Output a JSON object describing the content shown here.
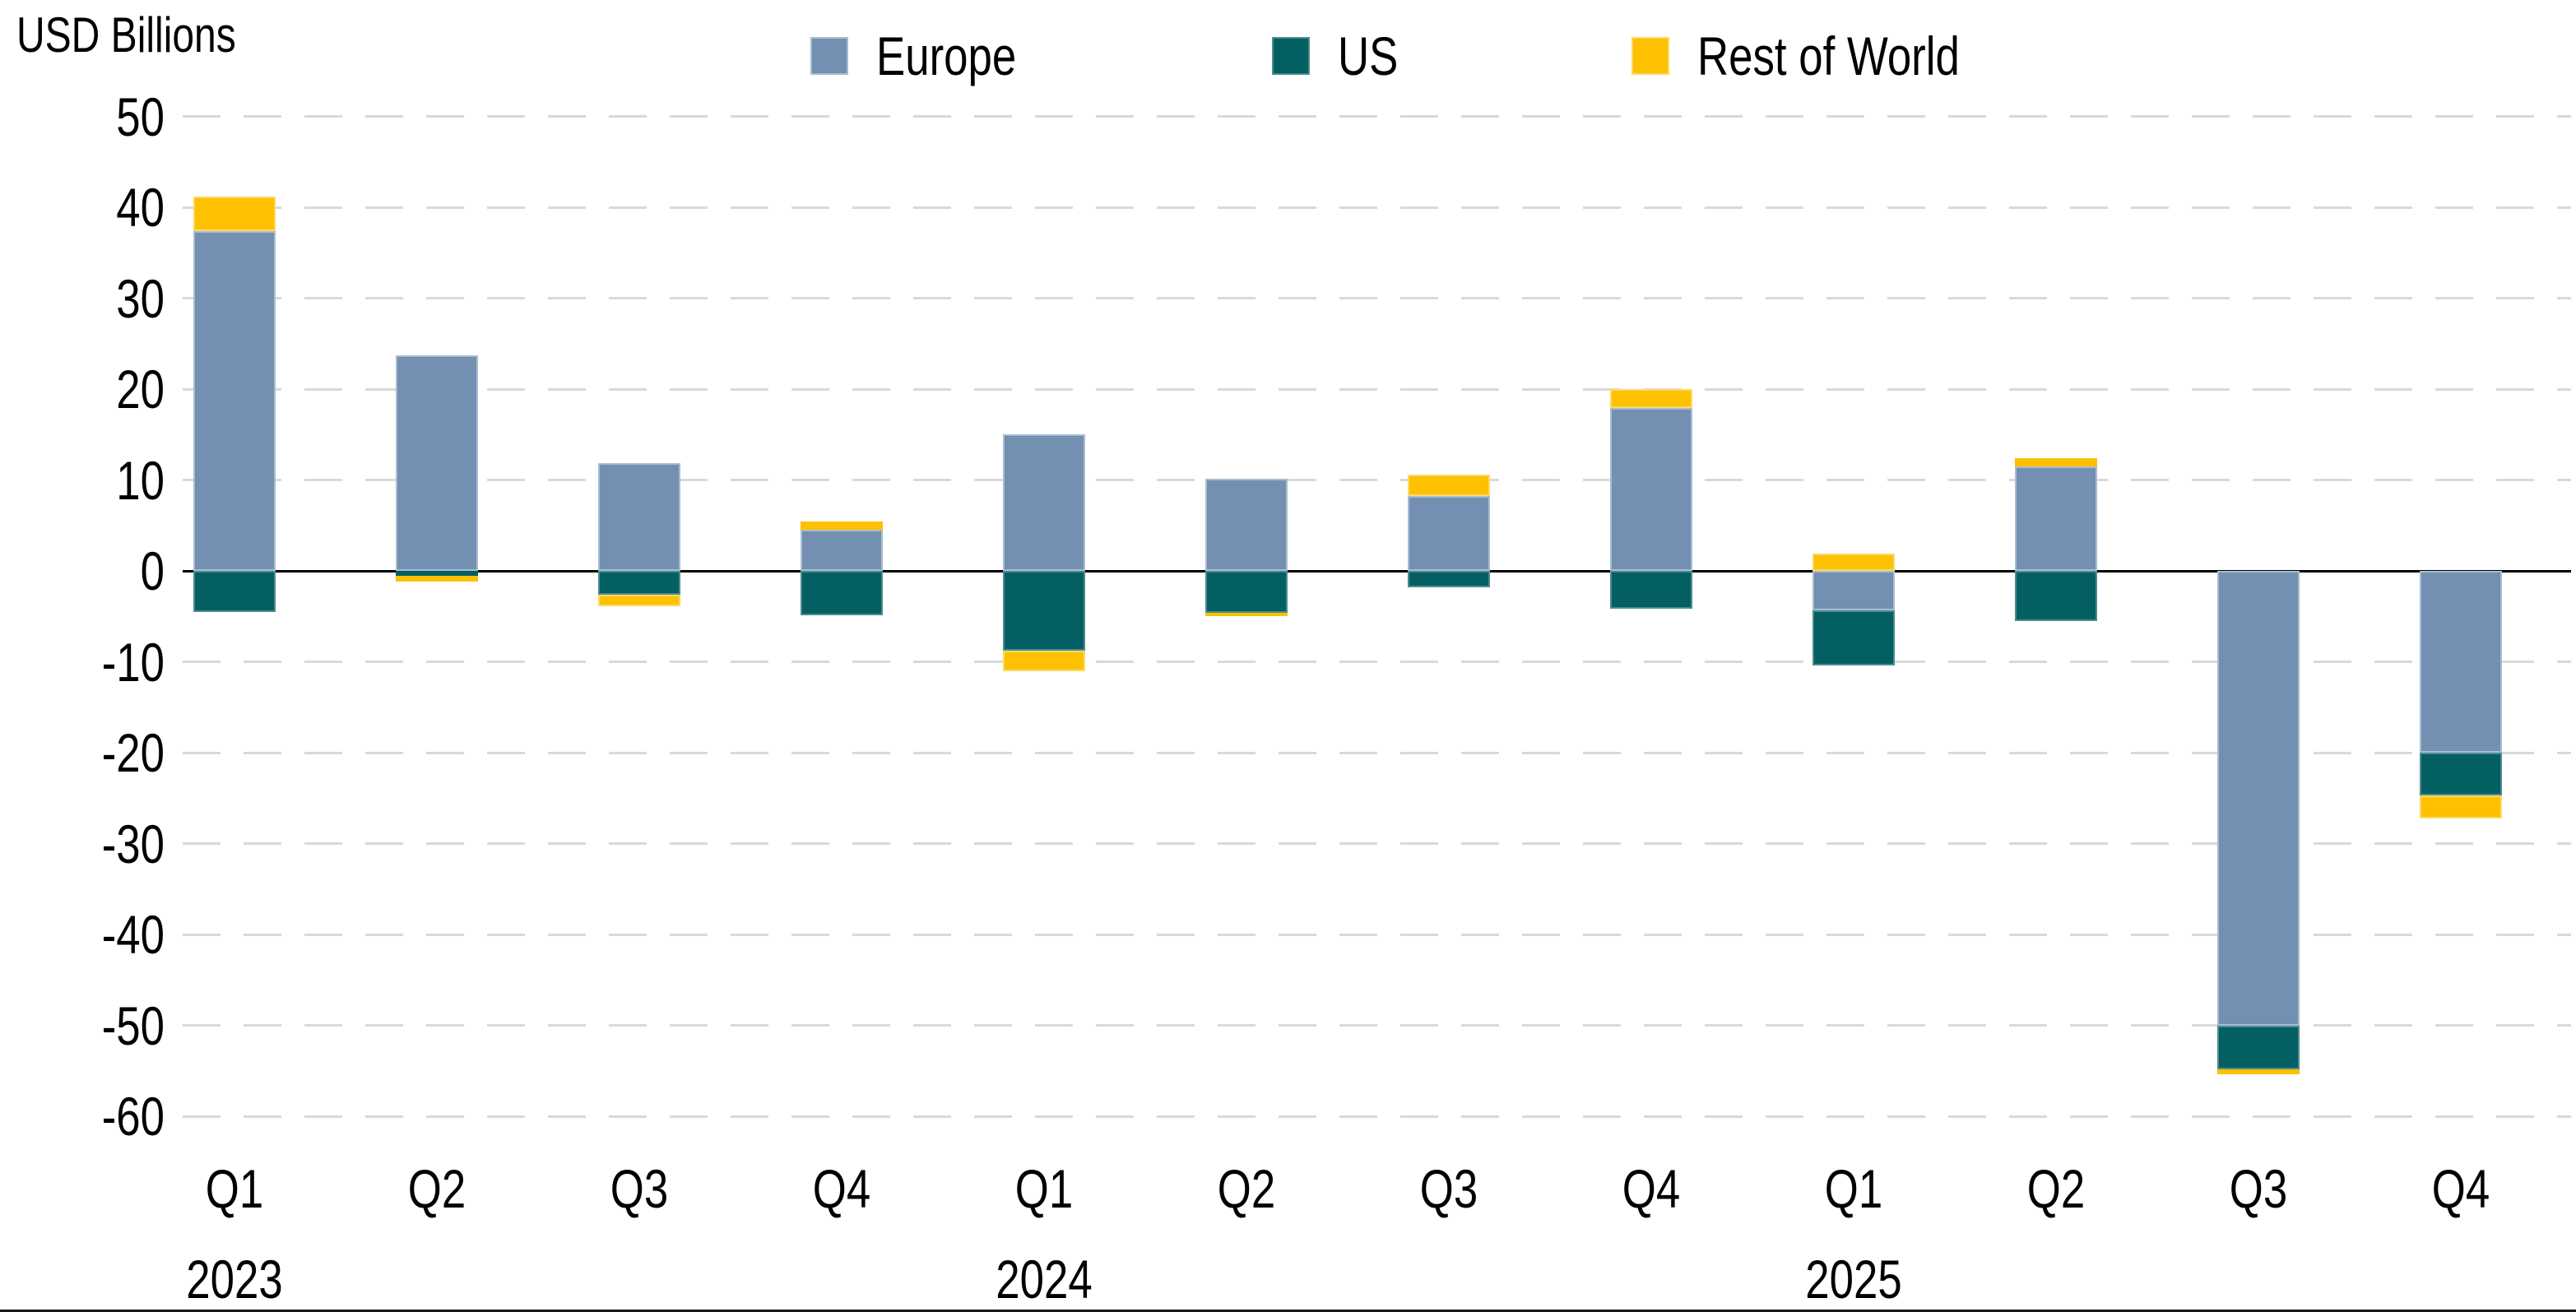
{
  "title": "USD Billions",
  "legend": {
    "items": [
      "Europe",
      "US",
      "Rest of World"
    ]
  },
  "colors": {
    "background": "#ffffff",
    "gridline": "#d9d9d9",
    "zero_axis": "#000000",
    "text": "#000000",
    "europe": "#7390b2",
    "us": "#045f63",
    "rest_of_world": "#fdc101"
  },
  "chart_data": {
    "type": "bar",
    "stacked": true,
    "title": "USD Billions",
    "xlabel": "",
    "ylabel": "USD Billions",
    "ylim": [
      -60,
      50
    ],
    "ytick_step": 10,
    "grid": "horizontal-dashed",
    "legend_position": "top",
    "categories": [
      "Q1",
      "Q2",
      "Q3",
      "Q4",
      "Q1",
      "Q2",
      "Q3",
      "Q4",
      "Q1",
      "Q2",
      "Q3",
      "Q4"
    ],
    "year_labels": [
      {
        "index": 0,
        "text": "2023"
      },
      {
        "index": 4,
        "text": "2024"
      },
      {
        "index": 8,
        "text": "2025"
      }
    ],
    "series": [
      {
        "name": "Europe",
        "color": "#7390b2",
        "border_color": "#a9bccf",
        "values": [
          37.4,
          23.7,
          11.9,
          4.5,
          15.0,
          10.1,
          8.2,
          17.9,
          -4.3,
          11.5,
          -50.0,
          -20.0
        ]
      },
      {
        "name": "US",
        "color": "#045f63",
        "border_color": "#4b8c8f",
        "values": [
          -4.5,
          -0.5,
          -2.6,
          -4.9,
          -8.8,
          -4.6,
          -1.8,
          -4.2,
          -6.1,
          -5.5,
          -4.8,
          -4.7
        ]
      },
      {
        "name": "Rest of World",
        "color": "#fdc101",
        "border_color": "#fdd964",
        "values": [
          3.8,
          -0.7,
          -1.3,
          0.9,
          -2.2,
          -0.4,
          2.4,
          2.1,
          1.9,
          0.9,
          -0.6,
          -2.5
        ]
      }
    ]
  }
}
